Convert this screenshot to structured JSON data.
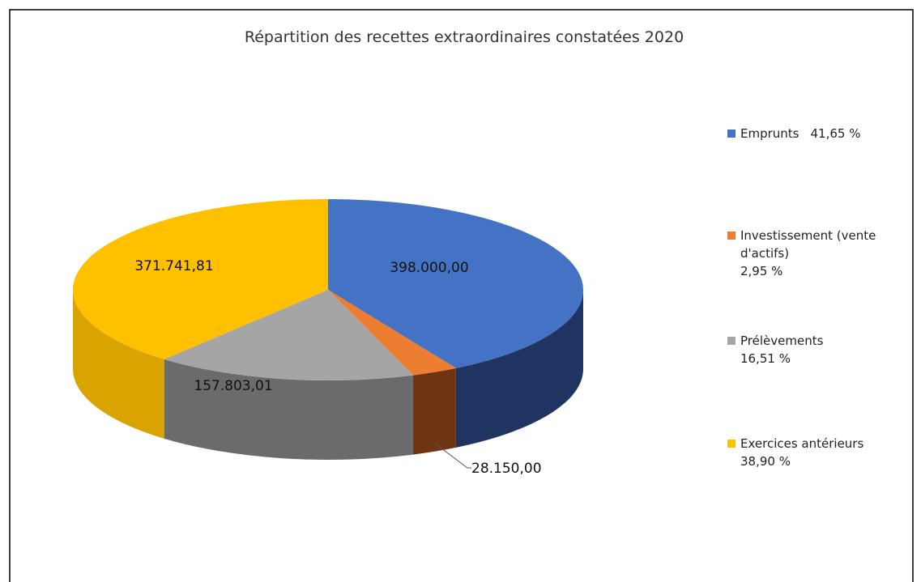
{
  "chart_data": {
    "type": "pie",
    "title": "Répartition des recettes extraordinaires constatées 2020",
    "categories": [
      "Emprunts",
      "Investissement (vente d'actifs)",
      "Prélèvements",
      "Exercices antérieurs"
    ],
    "values": [
      398000.0,
      28150.0,
      157803.01,
      371741.81
    ],
    "value_labels": [
      "398.000,00",
      "28.150,00",
      "157.803,01",
      "371.741,81"
    ],
    "percentages": [
      41.65,
      2.95,
      16.51,
      38.9
    ],
    "percentage_labels": [
      "41,65 %",
      "2,95 %",
      "16,51 %",
      "38,90 %"
    ],
    "colors": [
      "#4472c4",
      "#ed7d31",
      "#a5a5a5",
      "#ffc000"
    ],
    "side_colors": [
      "#1f3460",
      "#6e3512",
      "#6b6b6b",
      "#d9a400"
    ],
    "legend": "right"
  }
}
